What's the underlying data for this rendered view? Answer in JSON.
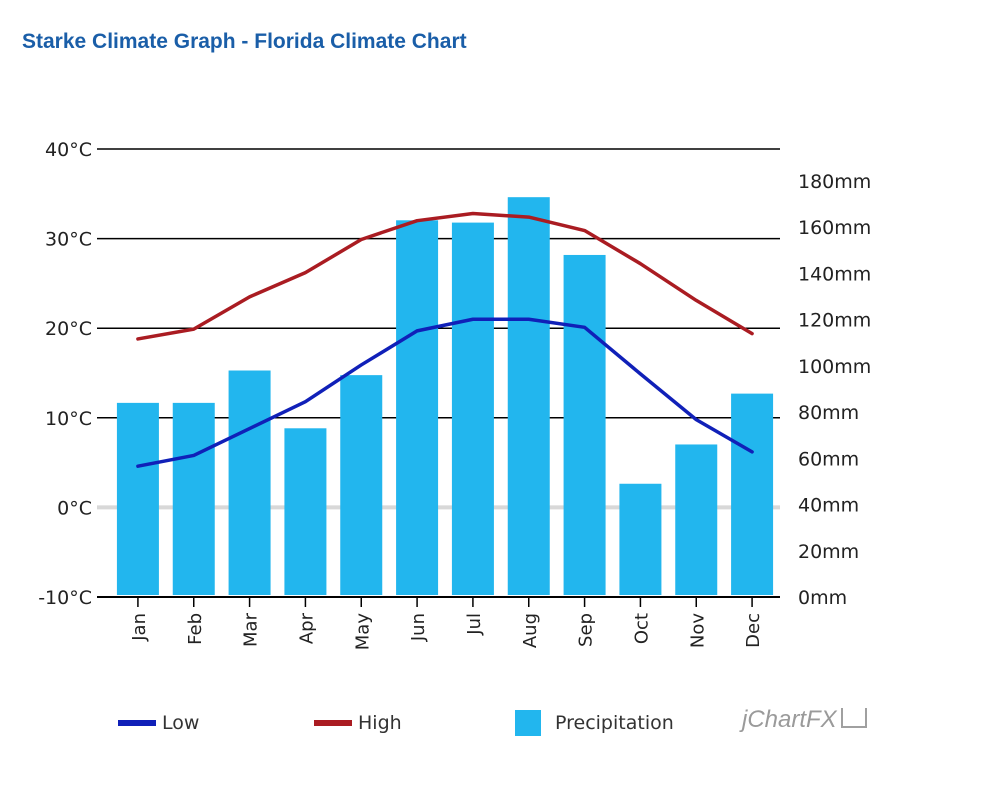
{
  "page": {
    "title": "Starke Climate Graph - Florida Climate Chart",
    "brand": "jChartFX"
  },
  "colors": {
    "low": "#1020b8",
    "high": "#aa1c22",
    "precip": "#22b6ee",
    "title": "#1a5ea8",
    "zero_line": "#d8d8d8"
  },
  "legend": {
    "low_label": "Low",
    "high_label": "High",
    "precip_label": "Precipitation"
  },
  "chart_data": {
    "type": "bar",
    "title": "Starke Climate Graph - Florida Climate Chart",
    "categories": [
      "Jan",
      "Feb",
      "Mar",
      "Apr",
      "May",
      "Jun",
      "Jul",
      "Aug",
      "Sep",
      "Oct",
      "Nov",
      "Dec"
    ],
    "y_left": {
      "unit": "°C",
      "ylim": [
        -10,
        40
      ],
      "ticks": [
        "40°C",
        "30°C",
        "20°C",
        "10°C",
        "0°C",
        "-10°C"
      ],
      "tick_values": [
        40,
        30,
        20,
        10,
        0,
        -10
      ]
    },
    "y_right": {
      "unit": "mm",
      "ylim": [
        0,
        180
      ],
      "ticks": [
        "180mm",
        "160mm",
        "140mm",
        "120mm",
        "100mm",
        "80mm",
        "60mm",
        "40mm",
        "20mm",
        "0mm"
      ],
      "tick_values": [
        180,
        160,
        140,
        120,
        100,
        80,
        60,
        40,
        20,
        0
      ]
    },
    "grid": true,
    "legend_position": "bottom",
    "series": [
      {
        "name": "Low",
        "type": "line",
        "axis": "left",
        "values": [
          4.6,
          5.8,
          8.8,
          11.8,
          15.9,
          19.7,
          21.0,
          21.0,
          20.1,
          14.9,
          9.8,
          6.2
        ]
      },
      {
        "name": "High",
        "type": "line",
        "axis": "left",
        "values": [
          18.8,
          19.9,
          23.5,
          26.2,
          29.9,
          32.0,
          32.8,
          32.4,
          30.9,
          27.2,
          23.1,
          19.4
        ]
      },
      {
        "name": "Precipitation",
        "type": "bar",
        "axis": "right",
        "values": [
          84,
          84,
          98,
          73,
          96,
          163,
          162,
          173,
          148,
          49,
          66,
          88
        ]
      }
    ]
  }
}
